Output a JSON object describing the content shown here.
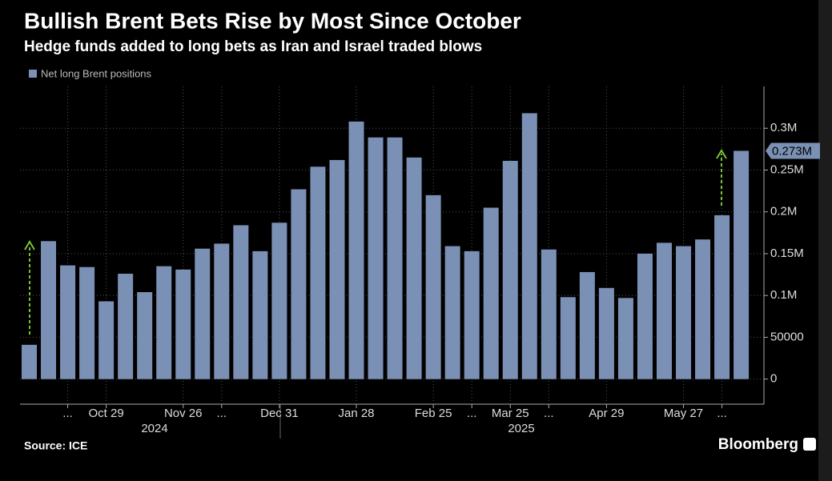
{
  "chart_data": {
    "type": "bar",
    "title": "Bullish Brent Bets Rise by Most Since October",
    "subtitle": "Hedge funds added to long bets as Iran and Israel traded blows",
    "source": "Source: ICE",
    "brand": "Bloomberg",
    "series": [
      {
        "name": "Net long Brent positions",
        "color": "#7b90b5",
        "values": [
          41000,
          165000,
          136000,
          134000,
          93000,
          126000,
          104000,
          135000,
          131000,
          156000,
          162000,
          184000,
          153000,
          187000,
          227000,
          254000,
          262000,
          308000,
          289000,
          289000,
          265000,
          220000,
          159000,
          153000,
          205000,
          261000,
          318000,
          155000,
          98000,
          128000,
          109000,
          97000,
          150000,
          163000,
          159000,
          167000,
          196000,
          273000
        ],
        "value_labels": [
          null,
          null,
          null,
          null,
          null,
          null,
          null,
          null,
          null,
          null,
          null,
          null,
          null,
          null,
          null,
          null,
          null,
          null,
          null,
          null,
          null,
          null,
          null,
          null,
          null,
          null,
          null,
          null,
          null,
          null,
          null,
          null,
          null,
          null,
          null,
          null,
          null,
          "0.273M"
        ]
      }
    ],
    "categories": [
      null,
      null,
      "...",
      null,
      "Oct 29",
      null,
      null,
      null,
      "Nov 26",
      null,
      "...",
      null,
      null,
      "Dec 31",
      null,
      null,
      null,
      "Jan 28",
      null,
      null,
      null,
      "Feb 25",
      null,
      "...",
      null,
      "Mar 25",
      null,
      "...",
      null,
      null,
      "Apr 29",
      null,
      null,
      null,
      "May 27",
      null,
      "...",
      null
    ],
    "year_labels": [
      "2024",
      "2025"
    ],
    "ylim": [
      -30000,
      350000
    ],
    "yticks": [
      0,
      50000,
      {
        "value": 100000,
        "label": "0.1M"
      },
      {
        "value": 150000,
        "label": "0.15M"
      },
      {
        "value": 200000,
        "label": "0.2M"
      },
      {
        "value": 250000,
        "label": "0.25M"
      },
      {
        "value": 300000,
        "label": "0.3M"
      }
    ],
    "grid": true
  }
}
